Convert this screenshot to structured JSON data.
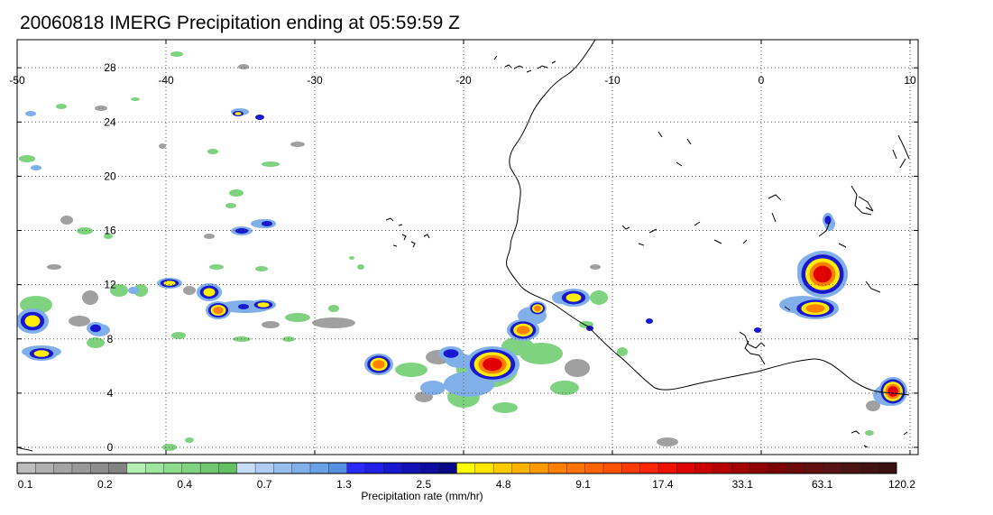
{
  "title": "20060818 IMERG Precipitation ending at 05:59:59 Z",
  "map": {
    "lon_range": [
      -50,
      10
    ],
    "lat_range": [
      -1,
      30
    ],
    "lon_ticks": [
      "-50",
      "-40",
      "-30",
      "-20",
      "-10",
      "0",
      "10"
    ],
    "lat_ticks": [
      "0",
      "4",
      "8",
      "12",
      "16",
      "20",
      "24",
      "28"
    ],
    "grid": "dotted",
    "coastline_color": "#000000"
  },
  "colorbar": {
    "title": "Precipitation rate (mm/hr)",
    "labels": [
      "0.1",
      "0.2",
      "0.4",
      "0.7",
      "1.3",
      "2.5",
      "4.8",
      "9.1",
      "17.4",
      "33.1",
      "63.1",
      "120.2"
    ],
    "colors": [
      "#bdbdbd",
      "#b0b0b0",
      "#a4a4a4",
      "#999999",
      "#8e8e8e",
      "#838383",
      "#b4efb4",
      "#9fe59f",
      "#8ddb8d",
      "#7fd27f",
      "#72c872",
      "#65bf65",
      "#c7dcf7",
      "#afcdf3",
      "#97beee",
      "#80afea",
      "#6aa0e6",
      "#5590e2",
      "#2a2aff",
      "#1f1fe8",
      "#1818d0",
      "#1212b8",
      "#0c0ca0",
      "#080888",
      "#ffff00",
      "#ffe600",
      "#ffcc00",
      "#ffb300",
      "#ff9900",
      "#ff8000",
      "#ff7300",
      "#ff6400",
      "#ff5200",
      "#ff3c00",
      "#ff2600",
      "#f01000",
      "#e00000",
      "#cc0000",
      "#b80000",
      "#a40000",
      "#900000",
      "#7c0000",
      "#6e0a0a",
      "#631010",
      "#581414",
      "#4d1414",
      "#431212",
      "#3a1010"
    ]
  },
  "colors": {
    "light_gray": "#a0a0a0",
    "green": "#7fd27f",
    "light_blue": "#80afea",
    "blue": "#1818d0",
    "yellow": "#ffee00",
    "orange": "#ff8000",
    "red": "#e00000"
  }
}
